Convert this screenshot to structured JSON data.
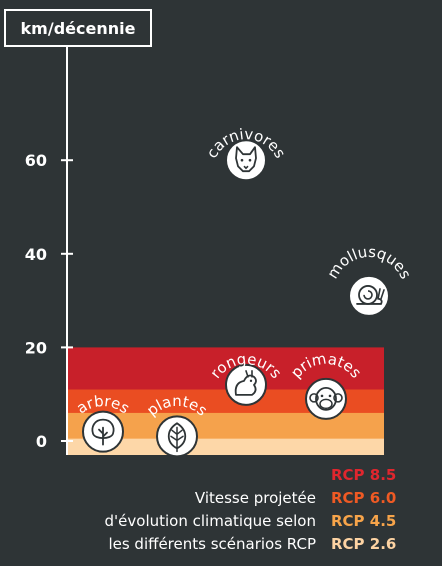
{
  "chart_data": {
    "type": "scatter",
    "unit_label": "km/décennie",
    "yticks": [
      0,
      20,
      40,
      60
    ],
    "ylim": [
      -3,
      80
    ],
    "rcp_bands": [
      {
        "label": "RCP 8.5",
        "value": 20,
        "color": "#c8202a"
      },
      {
        "label": "RCP 6.0",
        "value": 11,
        "color": "#ea4d22"
      },
      {
        "label": "RCP 4.5",
        "value": 6,
        "color": "#f5a24c"
      },
      {
        "label": "RCP 2.6",
        "value": 0.5,
        "color": "#fdd7a8"
      }
    ],
    "groups": [
      {
        "name": "carnivores",
        "value": 60,
        "icon": "fox-icon"
      },
      {
        "name": "mollusques",
        "value": 31,
        "icon": "snail-icon"
      },
      {
        "name": "rongeurs",
        "value": 12,
        "icon": "rodent-icon"
      },
      {
        "name": "primates",
        "value": 9,
        "icon": "monkey-icon"
      },
      {
        "name": "arbres",
        "value": 2,
        "icon": "tree-icon"
      },
      {
        "name": "plantes",
        "value": 1,
        "icon": "leaf-icon"
      }
    ],
    "caption": [
      "Vitesse projetée",
      "d'évolution climatique selon",
      "les différents scénarios RCP"
    ]
  }
}
